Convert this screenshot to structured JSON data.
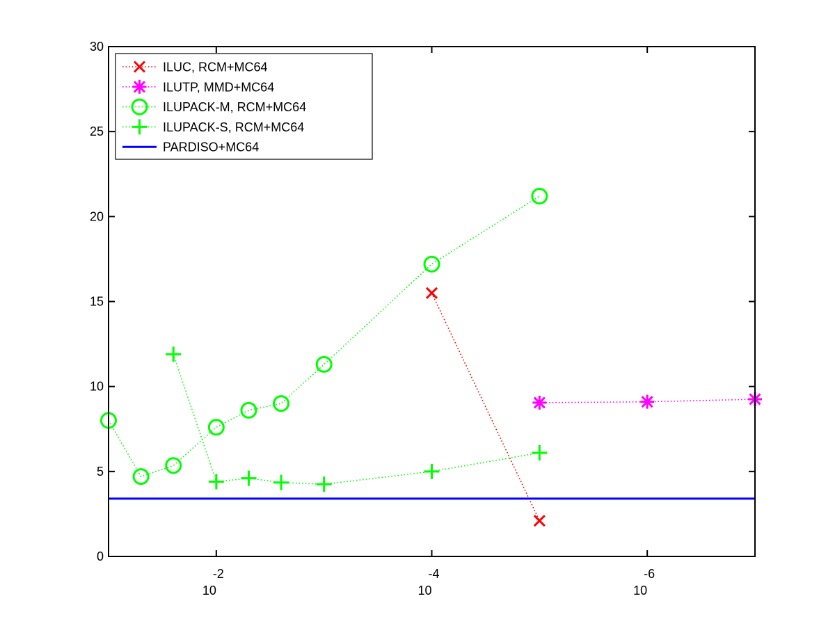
{
  "chart_data": {
    "type": "line",
    "xscale": "log",
    "xaxis_reversed": true,
    "xlim": [
      0.1,
      1e-07
    ],
    "ylim": [
      0,
      30
    ],
    "yticks": [
      0,
      5,
      10,
      15,
      20,
      25,
      30
    ],
    "ytick_labels": [
      "0",
      "5",
      "10",
      "15",
      "20",
      "25",
      "30"
    ],
    "xticks": [
      0.01,
      0.0001,
      1e-06
    ],
    "xtick_base_labels": [
      "10",
      "10",
      "10"
    ],
    "xtick_exponent_labels": [
      "-2",
      "-4",
      "-6"
    ],
    "title": "",
    "xlabel": "",
    "ylabel": "",
    "grid": false,
    "legend_position": "top-left",
    "series": [
      {
        "name": "ILUC, RCM+MC64",
        "color": "#ff0000",
        "marker": "x",
        "line_style": "dotted",
        "x": [
          0.0001,
          1e-05
        ],
        "y": [
          15.5,
          2.1
        ]
      },
      {
        "name": "ILUTP, MMD+MC64",
        "color": "#ff00ff",
        "marker": "star",
        "line_style": "dotted",
        "x": [
          1e-05,
          1e-06,
          1e-07
        ],
        "y": [
          9.05,
          9.1,
          9.25
        ]
      },
      {
        "name": "ILUPACK-M, RCM+MC64",
        "color": "#00ff00",
        "marker": "circle",
        "line_style": "dotted",
        "x": [
          0.1,
          0.05,
          0.025,
          0.01,
          0.005,
          0.0025,
          0.001,
          0.0001,
          1e-05
        ],
        "y": [
          8.0,
          4.7,
          5.35,
          7.6,
          8.6,
          9.0,
          11.3,
          17.2,
          21.2
        ]
      },
      {
        "name": "ILUPACK-S, RCM+MC64",
        "color": "#00ff00",
        "marker": "plus",
        "line_style": "dotted",
        "x": [
          0.025,
          0.01,
          0.005,
          0.0025,
          0.001,
          0.0001,
          1e-05
        ],
        "y": [
          11.9,
          4.4,
          4.6,
          4.35,
          4.25,
          5.0,
          6.1
        ]
      },
      {
        "name": "PARDISO+MC64",
        "color": "#0000ff",
        "marker": "none",
        "line_style": "solid",
        "x": [
          0.1,
          1e-07
        ],
        "y": [
          3.4,
          3.4
        ]
      }
    ]
  }
}
